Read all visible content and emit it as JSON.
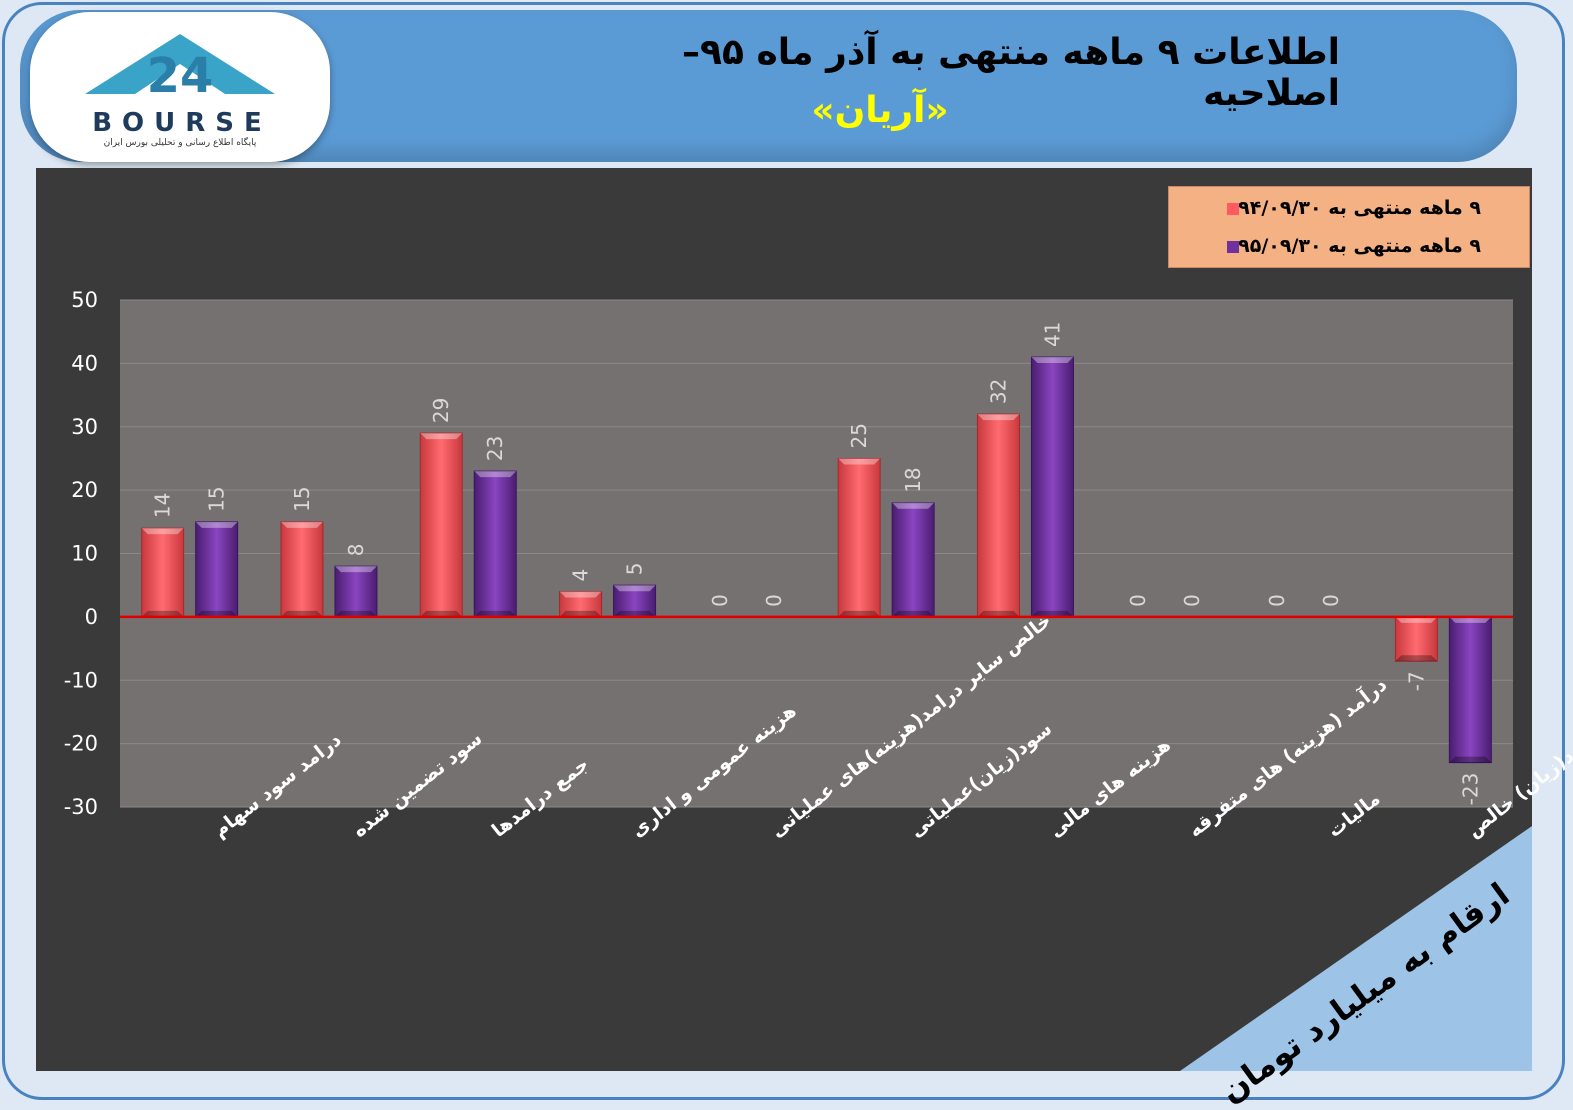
{
  "header": {
    "title": "اطلاعات ۹ ماهه منتهی به آذر ماه ۹۵– اصلاحیه",
    "subtitle": "«آریان»"
  },
  "logo": {
    "text": "BOURSE",
    "number": "24",
    "tagline": "پایگاه اطلاع رسانی و تحلیلی بورس ایران"
  },
  "units_note": "ارقام به میلیارد تومان",
  "colors": {
    "series1": "#ff5a5f",
    "series2": "#7030a0",
    "zero_line": "#e00000",
    "plot_bg": "#767171"
  },
  "chart_data": {
    "type": "bar",
    "title": "",
    "xlabel": "",
    "ylabel": "",
    "ylim": [
      -30,
      50
    ],
    "yticks": [
      50,
      40,
      30,
      20,
      10,
      0,
      -10,
      -20,
      -30
    ],
    "grid": true,
    "legend_position": "top-right",
    "categories": [
      "درامد سود سهام",
      "سود تضمین شده",
      "جمع درامدها",
      "هزینه عمومی و اداری",
      "خالص سایر درامد(هزینه)های عملیاتی",
      "سود(زیان)عملیاتی",
      "هزینه های مالی",
      "درآمد (هزینه) های متفرقه",
      "مالیات",
      "سود(زیان) خالص"
    ],
    "series": [
      {
        "name": "۹ ماهه منتهی به ۹۴/۰۹/۳۰",
        "values": [
          14,
          15,
          29,
          4,
          0,
          25,
          32,
          0,
          0,
          -7
        ]
      },
      {
        "name": "۹ ماهه منتهی به ۹۵/۰۹/۳۰",
        "values": [
          15,
          8,
          23,
          5,
          0,
          18,
          41,
          0,
          0,
          -23
        ]
      }
    ]
  }
}
